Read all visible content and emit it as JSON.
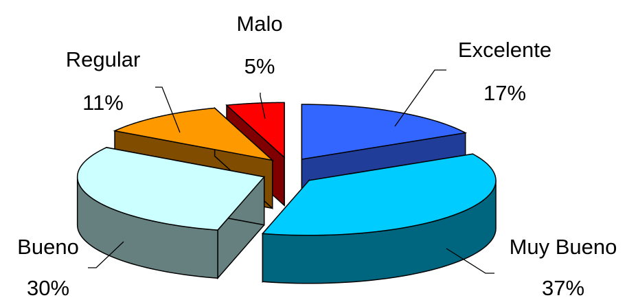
{
  "chart_data": {
    "type": "pie",
    "style": "3d-exploded",
    "title": "",
    "legend": "none",
    "slices": [
      {
        "label": "Excelente",
        "value": 17,
        "pct_label": "17%",
        "color": "#3366ff",
        "side_color": "#1f3d99"
      },
      {
        "label": "Muy Bueno",
        "value": 37,
        "pct_label": "37%",
        "color": "#00ccff",
        "side_color": "#006680"
      },
      {
        "label": "Bueno",
        "value": 30,
        "pct_label": "30%",
        "color": "#ccffff",
        "side_color": "#668080"
      },
      {
        "label": "Regular",
        "value": 11,
        "pct_label": "11%",
        "color": "#ff9900",
        "side_color": "#804c00"
      },
      {
        "label": "Malo",
        "value": 5,
        "pct_label": "5%",
        "color": "#ff0000",
        "side_color": "#800000"
      }
    ]
  }
}
